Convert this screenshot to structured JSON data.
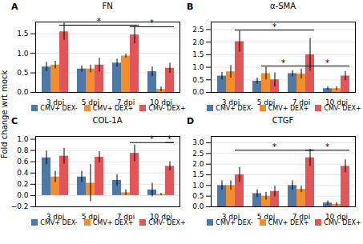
{
  "chart_data": [
    {
      "type": "bar",
      "title": "FN",
      "panel_label": "A",
      "ylabel": "Fold change wrt mock",
      "categories": [
        "3 dpi",
        "5 dpi",
        "7 dpi",
        "10 dpi"
      ],
      "series": [
        {
          "name": "CMV+ DEX-",
          "values": [
            0.65,
            0.6,
            0.75,
            0.53
          ],
          "errors": [
            0.12,
            0.08,
            0.1,
            0.12
          ]
        },
        {
          "name": "CMV+ DEX+",
          "values": [
            0.7,
            0.6,
            0.93,
            0.08
          ],
          "errors": [
            0.1,
            0.1,
            0.05,
            0.06
          ]
        },
        {
          "name": "CMV- DEX+",
          "values": [
            1.55,
            0.7,
            1.47,
            0.62
          ],
          "errors": [
            0.22,
            0.18,
            0.22,
            0.13
          ]
        }
      ],
      "ylim": [
        0,
        1.8
      ],
      "yticks": [
        {
          "value": 0,
          "label": "0.0"
        },
        0.5,
        {
          "value": 1.0,
          "label": "1.0"
        },
        1.5
      ],
      "grid": true,
      "legend": "bottom",
      "significance": [
        {
          "from": "3 dpi",
          "to": "7 dpi",
          "series": "CMV- DEX+",
          "y": 1.72,
          "label": "*"
        },
        {
          "from": "7 dpi",
          "to": "10 dpi",
          "series": "CMV- DEX+",
          "y": 1.68,
          "label": "*"
        }
      ]
    },
    {
      "type": "bar",
      "title": "α-SMA",
      "panel_label": "B",
      "categories": [
        "3 dpi",
        "5 dpi",
        "7 dpi",
        "10 dpi"
      ],
      "series": [
        {
          "name": "CMV+ DEX-",
          "values": [
            0.65,
            0.45,
            0.75,
            0.15
          ],
          "errors": [
            0.15,
            0.12,
            0.12,
            0.07
          ]
        },
        {
          "name": "CMV+ DEX+",
          "values": [
            0.82,
            0.75,
            0.73,
            0.15
          ],
          "errors": [
            0.25,
            0.25,
            0.2,
            0.07
          ]
        },
        {
          "name": "CMV- DEX+",
          "values": [
            2.02,
            0.5,
            1.5,
            0.65
          ],
          "errors": [
            0.42,
            0.28,
            0.65,
            0.18
          ]
        }
      ],
      "ylim": [
        0,
        2.8
      ],
      "yticks": [
        {
          "value": 0,
          "label": "0.0"
        },
        0.5,
        {
          "value": 1.0,
          "label": "1.0"
        },
        1.5,
        {
          "value": 2.0,
          "label": "2.0"
        },
        2.5
      ],
      "grid": true,
      "legend": "bottom",
      "significance": [
        {
          "from": "3 dpi",
          "to": "7 dpi",
          "series": "CMV- DEX+",
          "y": 2.48,
          "label": "*"
        },
        {
          "from": "5 dpi",
          "to": "7 dpi",
          "series": "CMV+ DEX+",
          "y": 1.05,
          "label": "*"
        },
        {
          "from": "7 dpi",
          "to": "10 dpi",
          "series": "CMV- DEX+",
          "y": 1.05,
          "label": "*"
        }
      ]
    },
    {
      "type": "bar",
      "title": "COL-1A",
      "panel_label": "C",
      "categories": [
        "3 dpi",
        "5 dpi",
        "7 dpi",
        "10 dpi"
      ],
      "series": [
        {
          "name": "CMV+ DEX-",
          "values": [
            0.67,
            0.33,
            0.27,
            0.1
          ],
          "errors": [
            0.12,
            0.1,
            0.1,
            0.12
          ]
        },
        {
          "name": "CMV+ DEX+",
          "values": [
            0.33,
            0.22,
            0.05,
            0.02
          ],
          "errors": [
            0.1,
            0.33,
            0.05,
            0.02
          ]
        },
        {
          "name": "CMV- DEX+",
          "values": [
            0.7,
            0.68,
            0.75,
            0.52
          ],
          "errors": [
            0.14,
            0.1,
            0.15,
            0.08
          ]
        }
      ],
      "ylim": [
        -0.2,
        1.05
      ],
      "yticks": [
        {
          "value": -0.2,
          "label": "−0.2"
        },
        {
          "value": 0,
          "label": "0.0"
        },
        0.2,
        0.4,
        0.6,
        0.8,
        {
          "value": 1.0,
          "label": "1.0"
        }
      ],
      "grid": true,
      "legend": "bottom",
      "significance": [
        {
          "from": "7 dpi",
          "to": "10 dpi",
          "series": "CMV- DEX+",
          "y": 0.94,
          "label": "*"
        },
        {
          "from": "10 dpi",
          "to": "10 dpi",
          "series": "CMV- DEX+",
          "y": 0.94,
          "label": "*"
        }
      ]
    },
    {
      "type": "bar",
      "title": "CTGF",
      "panel_label": "D",
      "categories": [
        "3 dpi",
        "5 dpi",
        "7 dpi",
        "10 dpi"
      ],
      "series": [
        {
          "name": "CMV+ DEX-",
          "values": [
            1.0,
            0.62,
            1.0,
            0.18
          ],
          "errors": [
            0.22,
            0.18,
            0.22,
            0.1
          ]
        },
        {
          "name": "CMV+ DEX+",
          "values": [
            1.0,
            0.5,
            0.82,
            0.12
          ],
          "errors": [
            0.22,
            0.18,
            0.15,
            0.08
          ]
        },
        {
          "name": "CMV- DEX+",
          "values": [
            1.5,
            0.72,
            2.3,
            1.9
          ],
          "errors": [
            0.35,
            0.25,
            0.4,
            0.3
          ]
        }
      ],
      "ylim": [
        0,
        3.3
      ],
      "yticks": [
        {
          "value": 0,
          "label": "0.0"
        },
        0.5,
        {
          "value": 1.0,
          "label": "1.0"
        },
        1.5,
        {
          "value": 2.0,
          "label": "2.0"
        },
        2.5,
        {
          "value": 3.0,
          "label": "3.0"
        }
      ],
      "grid": true,
      "legend": "bottom",
      "significance": [
        {
          "from": "3 dpi",
          "to": "7 dpi",
          "series": "CMV- DEX+",
          "y": 2.65,
          "label": "*"
        },
        {
          "from": "7 dpi",
          "to": "10 dpi",
          "series": "CMV- DEX+",
          "y": 2.65,
          "label": "*"
        }
      ]
    }
  ]
}
